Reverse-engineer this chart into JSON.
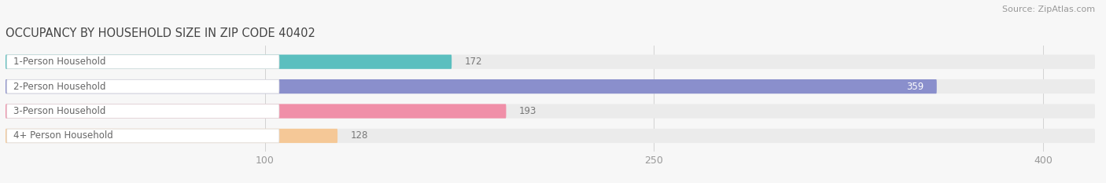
{
  "title": "OCCUPANCY BY HOUSEHOLD SIZE IN ZIP CODE 40402",
  "source": "Source: ZipAtlas.com",
  "categories": [
    "1-Person Household",
    "2-Person Household",
    "3-Person Household",
    "4+ Person Household"
  ],
  "values": [
    172,
    359,
    193,
    128
  ],
  "bar_colors": [
    "#5BBFBF",
    "#8A8FCC",
    "#F08FA8",
    "#F5C897"
  ],
  "bar_bg_color": "#EBEBEB",
  "label_bg_color": "#FFFFFF",
  "xlim": [
    0,
    420
  ],
  "xticks": [
    100,
    250,
    400
  ],
  "title_fontsize": 10.5,
  "source_fontsize": 8,
  "label_fontsize": 8.5,
  "value_fontsize": 8.5,
  "tick_fontsize": 9,
  "bar_height": 0.58,
  "figsize": [
    14.06,
    2.33
  ],
  "dpi": 100
}
